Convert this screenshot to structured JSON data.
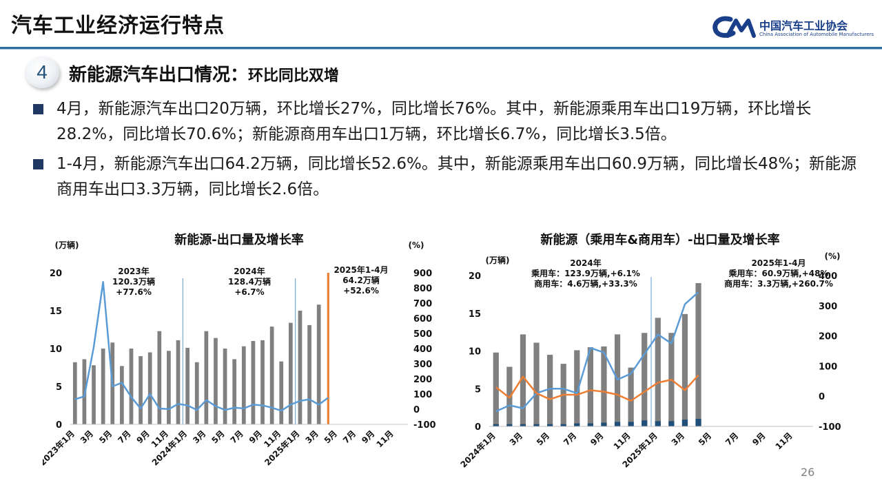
{
  "header": {
    "title": "汽车工业经济运行特点",
    "logo_cn": "中国汽车工业协会",
    "logo_en": "China Association of Automobile Manufacturers"
  },
  "section": {
    "number": "4",
    "title": "新能源汽车出口情况：",
    "subtitle": "环比同比双增"
  },
  "bullets": [
    "4月，新能源汽车出口20万辆，环比增长27%，同比增长76%。其中，新能源乘用车出口19万辆，环比增长28.2%，同比增长70.6%；新能源商用车出口1万辆，环比增长6.7%，同比增长3.5倍。",
    "1-4月，新能源汽车出口64.2万辆，同比增长52.6%。其中，新能源乘用车出口60.9万辆，同比增长48%；新能源商用车出口3.3万辆，同比增长2.6倍。"
  ],
  "page_number": "26",
  "colors": {
    "bar_gray": "#808080",
    "line_blue": "#5b9bd5",
    "line_orange": "#ed7d31",
    "bar_navy": "#1f4e79",
    "highlight_orange": "#ed7d31"
  },
  "chart_data": [
    {
      "type": "bar",
      "title": "新能源-出口量及增长率",
      "ylabel": "(万辆)",
      "y2label": "(%)",
      "ylim": [
        0,
        20
      ],
      "y2lim": [
        -100,
        900
      ],
      "yticks": [
        "0",
        "5",
        "10",
        "15",
        "20"
      ],
      "y2ticks": [
        "-100",
        "0",
        "100",
        "200",
        "300",
        "400",
        "500",
        "600",
        "700",
        "800",
        "900"
      ],
      "x_tick_labels": [
        "2023年1月",
        "3月",
        "5月",
        "7月",
        "9月",
        "11月",
        "2024年1月",
        "3月",
        "5月",
        "7月",
        "9月",
        "11月",
        "2025年1月",
        "3月",
        "5月",
        "7月",
        "9月",
        "11月"
      ],
      "x_tick_index": [
        0,
        2,
        4,
        6,
        8,
        10,
        12,
        14,
        16,
        18,
        20,
        22,
        24,
        26,
        28,
        30,
        32,
        34
      ],
      "n_slots": 36,
      "series": [
        {
          "kind": "bar",
          "axis": "left",
          "values": [
            8.2,
            8.6,
            7.8,
            10.0,
            10.8,
            7.7,
            10.0,
            9.0,
            9.5,
            12.3,
            9.7,
            11.1,
            10.1,
            8.2,
            12.3,
            11.4,
            10.0,
            8.6,
            10.3,
            11.0,
            11.1,
            12.9,
            8.3,
            13.4,
            15.0,
            13.1,
            15.8,
            20.0
          ]
        },
        {
          "kind": "line",
          "axis": "right",
          "values": [
            65,
            85,
            410,
            840,
            150,
            175,
            80,
            5,
            100,
            5,
            0,
            35,
            25,
            -5,
            60,
            20,
            -5,
            10,
            5,
            30,
            25,
            10,
            -10,
            30,
            55,
            65,
            30,
            76
          ]
        }
      ],
      "annotations": [
        {
          "lines": [
            "2023年",
            "120.3万辆",
            "+77.6%"
          ]
        },
        {
          "lines": [
            "2024年",
            "128.4万辆",
            "+6.7%"
          ]
        },
        {
          "lines": [
            "2025年1-4月",
            "64.2万辆",
            "+52.6%"
          ]
        }
      ],
      "highlight_index": 27
    },
    {
      "type": "bar",
      "title": "新能源（乘用车&商用车）-出口量及增长率",
      "ylabel": "(万辆)",
      "y2label": "(%)",
      "ylim": [
        0,
        20
      ],
      "y2lim": [
        -100,
        400
      ],
      "yticks": [
        "0",
        "5",
        "10",
        "15",
        "20"
      ],
      "y2ticks": [
        "-100",
        "0",
        "100",
        "200",
        "300",
        "400"
      ],
      "x_tick_labels": [
        "2024年1月",
        "3月",
        "5月",
        "7月",
        "9月",
        "11月",
        "2025年1月",
        "3月",
        "5月",
        "7月",
        "9月",
        "11月"
      ],
      "x_tick_index": [
        0,
        2,
        4,
        6,
        8,
        10,
        12,
        14,
        16,
        18,
        20,
        22
      ],
      "n_slots": 24,
      "series": [
        {
          "kind": "bar",
          "axis": "left",
          "values": [
            9.8,
            7.9,
            12.2,
            11.1,
            9.5,
            8.3,
            10.1,
            10.5,
            10.6,
            12.2,
            7.8,
            12.4,
            14.4,
            12.4,
            14.9,
            19.0
          ]
        },
        {
          "kind": "bar",
          "axis": "left",
          "values": [
            0.3,
            0.3,
            0.3,
            0.3,
            0.3,
            0.3,
            0.4,
            0.4,
            0.5,
            0.6,
            0.6,
            0.8,
            0.7,
            0.7,
            0.9,
            1.0
          ]
        },
        {
          "kind": "line",
          "axis": "right",
          "values": [
            -50,
            -30,
            -40,
            10,
            25,
            25,
            10,
            160,
            145,
            55,
            75,
            140,
            205,
            175,
            305,
            345
          ]
        },
        {
          "kind": "line",
          "axis": "right",
          "values": [
            30,
            -5,
            65,
            10,
            -10,
            5,
            5,
            20,
            15,
            5,
            -15,
            15,
            45,
            55,
            20,
            70
          ]
        }
      ],
      "annotations": [
        {
          "lines": [
            "2024年",
            "乘用车：123.9万辆,+6.1%",
            "商用车：4.6万辆,+33.3%"
          ]
        },
        {
          "lines": [
            "2025年1-4月",
            "乘用车：60.9万辆,+48%",
            "商用车：3.3万辆,+260.7%"
          ]
        }
      ]
    }
  ]
}
